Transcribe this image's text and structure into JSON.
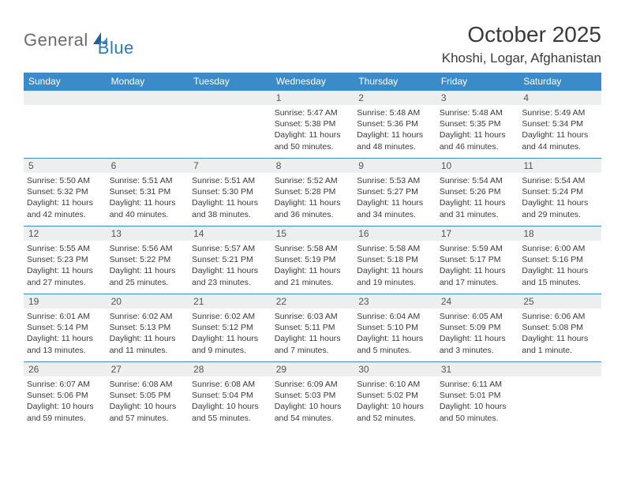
{
  "brand": {
    "text1": "General",
    "text2": "Blue"
  },
  "title": "October 2025",
  "location": "Khoshi, Logar, Afghanistan",
  "colors": {
    "header_bg": "#3b8bc9",
    "daynum_bg": "#eceef0",
    "border": "#3b8bc9",
    "text": "#3a3a3a",
    "logo_gray": "#6b6b6b",
    "logo_blue": "#2a7ab8"
  },
  "day_headers": [
    "Sunday",
    "Monday",
    "Tuesday",
    "Wednesday",
    "Thursday",
    "Friday",
    "Saturday"
  ],
  "weeks": [
    [
      {
        "blank": true
      },
      {
        "blank": true
      },
      {
        "blank": true
      },
      {
        "n": "1",
        "sr": "5:47 AM",
        "ss": "5:38 PM",
        "dl": "11 hours and 50 minutes."
      },
      {
        "n": "2",
        "sr": "5:48 AM",
        "ss": "5:36 PM",
        "dl": "11 hours and 48 minutes."
      },
      {
        "n": "3",
        "sr": "5:48 AM",
        "ss": "5:35 PM",
        "dl": "11 hours and 46 minutes."
      },
      {
        "n": "4",
        "sr": "5:49 AM",
        "ss": "5:34 PM",
        "dl": "11 hours and 44 minutes."
      }
    ],
    [
      {
        "n": "5",
        "sr": "5:50 AM",
        "ss": "5:32 PM",
        "dl": "11 hours and 42 minutes."
      },
      {
        "n": "6",
        "sr": "5:51 AM",
        "ss": "5:31 PM",
        "dl": "11 hours and 40 minutes."
      },
      {
        "n": "7",
        "sr": "5:51 AM",
        "ss": "5:30 PM",
        "dl": "11 hours and 38 minutes."
      },
      {
        "n": "8",
        "sr": "5:52 AM",
        "ss": "5:28 PM",
        "dl": "11 hours and 36 minutes."
      },
      {
        "n": "9",
        "sr": "5:53 AM",
        "ss": "5:27 PM",
        "dl": "11 hours and 34 minutes."
      },
      {
        "n": "10",
        "sr": "5:54 AM",
        "ss": "5:26 PM",
        "dl": "11 hours and 31 minutes."
      },
      {
        "n": "11",
        "sr": "5:54 AM",
        "ss": "5:24 PM",
        "dl": "11 hours and 29 minutes."
      }
    ],
    [
      {
        "n": "12",
        "sr": "5:55 AM",
        "ss": "5:23 PM",
        "dl": "11 hours and 27 minutes."
      },
      {
        "n": "13",
        "sr": "5:56 AM",
        "ss": "5:22 PM",
        "dl": "11 hours and 25 minutes."
      },
      {
        "n": "14",
        "sr": "5:57 AM",
        "ss": "5:21 PM",
        "dl": "11 hours and 23 minutes."
      },
      {
        "n": "15",
        "sr": "5:58 AM",
        "ss": "5:19 PM",
        "dl": "11 hours and 21 minutes."
      },
      {
        "n": "16",
        "sr": "5:58 AM",
        "ss": "5:18 PM",
        "dl": "11 hours and 19 minutes."
      },
      {
        "n": "17",
        "sr": "5:59 AM",
        "ss": "5:17 PM",
        "dl": "11 hours and 17 minutes."
      },
      {
        "n": "18",
        "sr": "6:00 AM",
        "ss": "5:16 PM",
        "dl": "11 hours and 15 minutes."
      }
    ],
    [
      {
        "n": "19",
        "sr": "6:01 AM",
        "ss": "5:14 PM",
        "dl": "11 hours and 13 minutes."
      },
      {
        "n": "20",
        "sr": "6:02 AM",
        "ss": "5:13 PM",
        "dl": "11 hours and 11 minutes."
      },
      {
        "n": "21",
        "sr": "6:02 AM",
        "ss": "5:12 PM",
        "dl": "11 hours and 9 minutes."
      },
      {
        "n": "22",
        "sr": "6:03 AM",
        "ss": "5:11 PM",
        "dl": "11 hours and 7 minutes."
      },
      {
        "n": "23",
        "sr": "6:04 AM",
        "ss": "5:10 PM",
        "dl": "11 hours and 5 minutes."
      },
      {
        "n": "24",
        "sr": "6:05 AM",
        "ss": "5:09 PM",
        "dl": "11 hours and 3 minutes."
      },
      {
        "n": "25",
        "sr": "6:06 AM",
        "ss": "5:08 PM",
        "dl": "11 hours and 1 minute."
      }
    ],
    [
      {
        "n": "26",
        "sr": "6:07 AM",
        "ss": "5:06 PM",
        "dl": "10 hours and 59 minutes."
      },
      {
        "n": "27",
        "sr": "6:08 AM",
        "ss": "5:05 PM",
        "dl": "10 hours and 57 minutes."
      },
      {
        "n": "28",
        "sr": "6:08 AM",
        "ss": "5:04 PM",
        "dl": "10 hours and 55 minutes."
      },
      {
        "n": "29",
        "sr": "6:09 AM",
        "ss": "5:03 PM",
        "dl": "10 hours and 54 minutes."
      },
      {
        "n": "30",
        "sr": "6:10 AM",
        "ss": "5:02 PM",
        "dl": "10 hours and 52 minutes."
      },
      {
        "n": "31",
        "sr": "6:11 AM",
        "ss": "5:01 PM",
        "dl": "10 hours and 50 minutes."
      },
      {
        "blank": true
      }
    ]
  ],
  "labels": {
    "sunrise": "Sunrise:",
    "sunset": "Sunset:",
    "daylight": "Daylight:"
  }
}
